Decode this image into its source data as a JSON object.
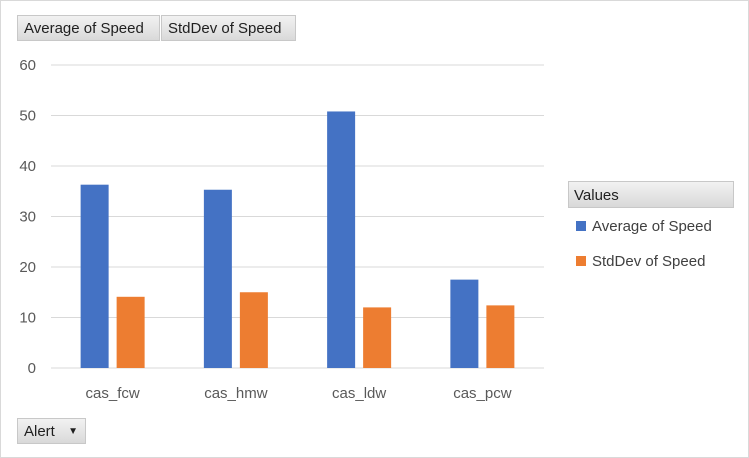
{
  "field_buttons": {
    "value_1": "Average of Speed",
    "value_2": "StdDev of Speed",
    "axis": "Alert",
    "axis_dropdown_icon": "caret-down-icon"
  },
  "legend": {
    "title": "Values",
    "items": [
      "Average of Speed",
      "StdDev of Speed"
    ]
  },
  "colors": {
    "series_0": "#4472C4",
    "series_1": "#ED7D31",
    "grid": "#d9d9d9",
    "axis_text": "#595959"
  },
  "chart_data": {
    "type": "bar",
    "categories": [
      "cas_fcw",
      "cas_hmw",
      "cas_ldw",
      "cas_pcw"
    ],
    "series": [
      {
        "name": "Average of Speed",
        "values": [
          36.3,
          35.3,
          50.8,
          17.5
        ]
      },
      {
        "name": "StdDev of Speed",
        "values": [
          14.1,
          15.0,
          12.0,
          12.4
        ]
      }
    ],
    "ylim": [
      0,
      60
    ],
    "yticks": [
      0,
      10,
      20,
      30,
      40,
      50,
      60
    ],
    "grid": true,
    "legend_position": "right"
  }
}
